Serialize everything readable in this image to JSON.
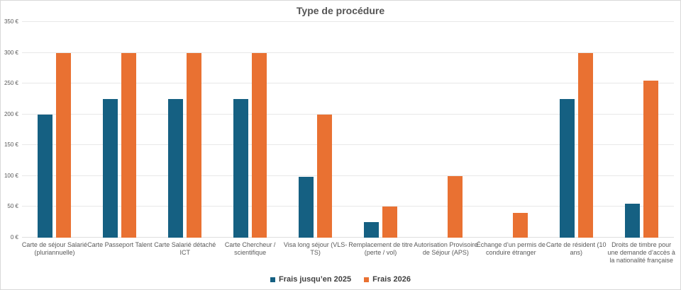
{
  "title": "Type de procédure",
  "colors": {
    "series_2025": "#156082",
    "series_2026": "#E97132",
    "grid": "#E8E8E8",
    "axis_text": "#595959",
    "title_text": "#555555",
    "legend_text": "#3F3F3F",
    "frame_border": "#D9D9D9",
    "background": "#FFFFFF"
  },
  "chart_data": {
    "type": "bar",
    "title": "Type de procédure",
    "categories": [
      "Carte de séjour Salarié (pluriannuelle)",
      "Carte Passeport Talent",
      "Carte Salarié détaché ICT",
      "Carte Chercheur / scientifique",
      "Visa long séjour (VLS-TS)",
      "Remplacement de titre (perte / vol)",
      "Autorisation Provisoire de Séjour (APS)",
      "Échange d’un permis de conduire étranger",
      "Carte de résident (10 ans)",
      "Droits de timbre pour une demande d’accès à la nationalité française"
    ],
    "series": [
      {
        "name": "Frais jusqu’en 2025",
        "color": "#156082",
        "values": [
          200,
          225,
          225,
          225,
          99,
          25,
          0,
          0,
          225,
          55
        ]
      },
      {
        "name": "Frais 2026",
        "color": "#E97132",
        "values": [
          300,
          300,
          300,
          300,
          200,
          50,
          100,
          40,
          300,
          255
        ]
      }
    ],
    "xlabel": "",
    "ylabel": "",
    "ylim": [
      0,
      350
    ],
    "y_tick_step": 50,
    "y_ticks": [
      "0 €",
      "50 €",
      "100 €",
      "150 €",
      "200 €",
      "250 €",
      "300 €",
      "350 €"
    ],
    "grid": "horizontal",
    "legend_position": "bottom"
  }
}
